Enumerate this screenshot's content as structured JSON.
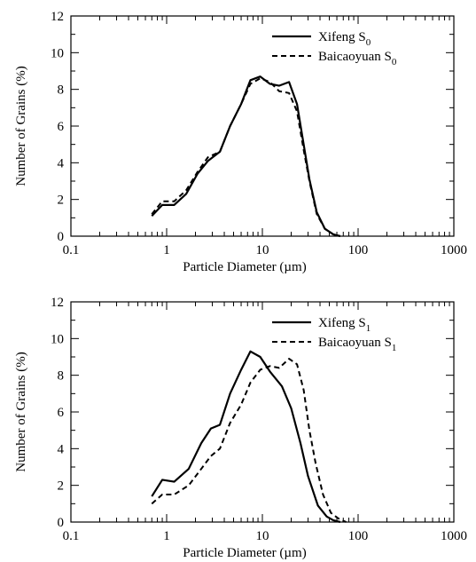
{
  "chart_data": [
    {
      "type": "line",
      "xscale": "log",
      "xlim": [
        0.1,
        1000
      ],
      "ylim": [
        0,
        12
      ],
      "xlabel": "Particle Diameter (µm)",
      "ylabel": "Number of Grains (%)",
      "xticks": [
        "0.1",
        "1",
        "10",
        "100",
        "1000"
      ],
      "yticks": [
        "0",
        "2",
        "4",
        "6",
        "8",
        "10",
        "12"
      ],
      "legend_position": "top-right",
      "series": [
        {
          "name": "Xifeng S",
          "subscript": "0",
          "style": "solid",
          "points": [
            [
              0.7,
              1.1
            ],
            [
              0.9,
              1.7
            ],
            [
              1.2,
              1.7
            ],
            [
              1.6,
              2.3
            ],
            [
              2.1,
              3.4
            ],
            [
              2.7,
              4.1
            ],
            [
              3.6,
              4.6
            ],
            [
              4.6,
              6.0
            ],
            [
              6.0,
              7.2
            ],
            [
              7.5,
              8.5
            ],
            [
              9.5,
              8.7
            ],
            [
              12,
              8.3
            ],
            [
              15,
              8.2
            ],
            [
              19,
              8.4
            ],
            [
              23,
              7.2
            ],
            [
              27,
              5.0
            ],
            [
              31,
              3.1
            ],
            [
              37,
              1.3
            ],
            [
              45,
              0.4
            ],
            [
              55,
              0.1
            ],
            [
              65,
              0.0
            ]
          ]
        },
        {
          "name": "Baicaoyuan S",
          "subscript": "0",
          "style": "dashed",
          "points": [
            [
              0.7,
              1.2
            ],
            [
              0.9,
              1.9
            ],
            [
              1.2,
              1.9
            ],
            [
              1.6,
              2.5
            ],
            [
              2.1,
              3.5
            ],
            [
              2.7,
              4.3
            ],
            [
              3.6,
              4.6
            ],
            [
              4.6,
              6.0
            ],
            [
              6.0,
              7.2
            ],
            [
              7.5,
              8.3
            ],
            [
              9.5,
              8.6
            ],
            [
              12,
              8.4
            ],
            [
              15,
              7.9
            ],
            [
              19,
              7.8
            ],
            [
              23,
              6.8
            ],
            [
              27,
              4.7
            ],
            [
              31,
              3.0
            ],
            [
              37,
              1.2
            ],
            [
              45,
              0.4
            ],
            [
              55,
              0.1
            ],
            [
              65,
              0.0
            ]
          ]
        }
      ]
    },
    {
      "type": "line",
      "xscale": "log",
      "xlim": [
        0.1,
        1000
      ],
      "ylim": [
        0,
        12
      ],
      "xlabel": "Particle Diameter (µm)",
      "ylabel": "Number of Grains (%)",
      "xticks": [
        "0.1",
        "1",
        "10",
        "100",
        "1000"
      ],
      "yticks": [
        "0",
        "2",
        "4",
        "6",
        "8",
        "10",
        "12"
      ],
      "legend_position": "top-right",
      "series": [
        {
          "name": "Xifeng S",
          "subscript": "1",
          "style": "solid",
          "points": [
            [
              0.7,
              1.4
            ],
            [
              0.9,
              2.3
            ],
            [
              1.2,
              2.2
            ],
            [
              1.7,
              2.9
            ],
            [
              2.3,
              4.3
            ],
            [
              2.9,
              5.1
            ],
            [
              3.6,
              5.3
            ],
            [
              4.6,
              7.0
            ],
            [
              6.0,
              8.3
            ],
            [
              7.5,
              9.3
            ],
            [
              9.5,
              9.0
            ],
            [
              12,
              8.2
            ],
            [
              16,
              7.4
            ],
            [
              20,
              6.2
            ],
            [
              25,
              4.3
            ],
            [
              30,
              2.5
            ],
            [
              38,
              0.9
            ],
            [
              47,
              0.3
            ],
            [
              55,
              0.1
            ],
            [
              65,
              0.0
            ]
          ]
        },
        {
          "name": "Baicaoyuan S",
          "subscript": "1",
          "style": "dashed",
          "points": [
            [
              0.7,
              1.0
            ],
            [
              0.9,
              1.5
            ],
            [
              1.2,
              1.5
            ],
            [
              1.7,
              2.0
            ],
            [
              2.3,
              2.9
            ],
            [
              2.9,
              3.6
            ],
            [
              3.6,
              4.0
            ],
            [
              4.6,
              5.4
            ],
            [
              6.0,
              6.4
            ],
            [
              7.5,
              7.6
            ],
            [
              9.5,
              8.3
            ],
            [
              12,
              8.5
            ],
            [
              15,
              8.4
            ],
            [
              19,
              8.9
            ],
            [
              23,
              8.6
            ],
            [
              27,
              7.2
            ],
            [
              31,
              5.0
            ],
            [
              36,
              3.2
            ],
            [
              43,
              1.5
            ],
            [
              52,
              0.5
            ],
            [
              62,
              0.2
            ],
            [
              75,
              0.0
            ]
          ]
        }
      ]
    }
  ]
}
